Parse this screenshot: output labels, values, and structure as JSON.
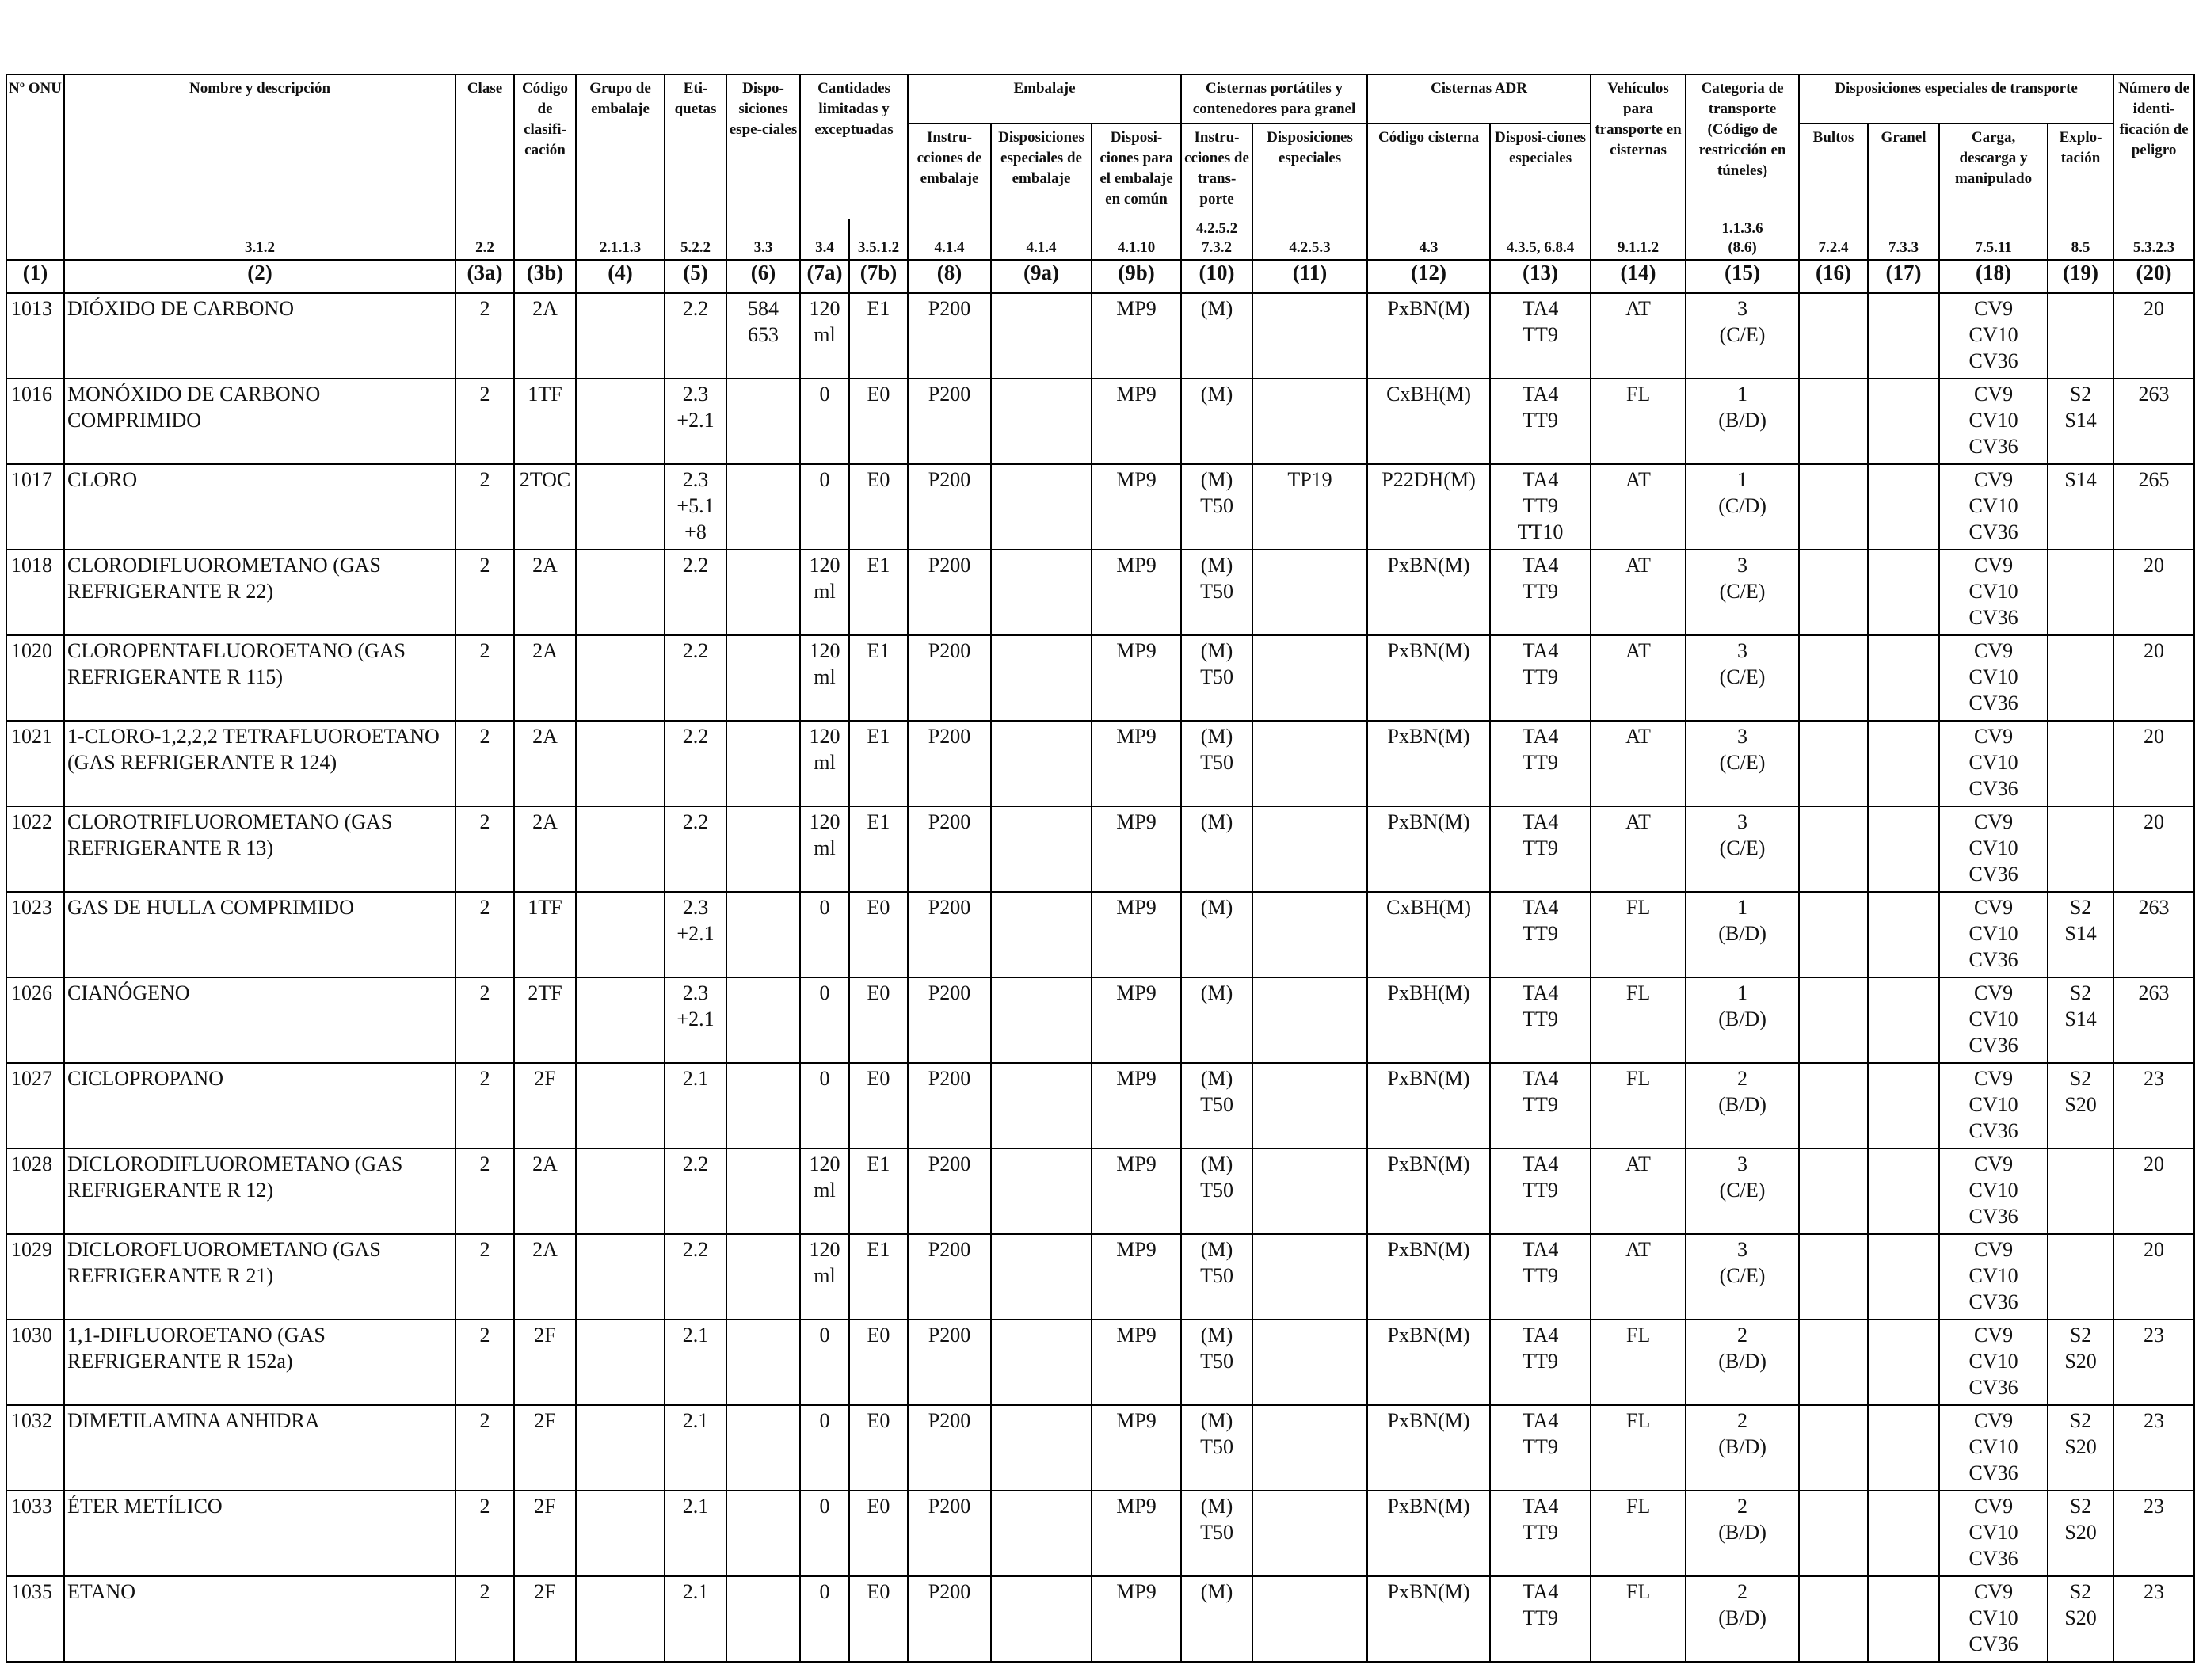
{
  "header": {
    "c1": "Nº ONU",
    "c2": "Nombre y descripción",
    "c3a": "Clase",
    "c3b": "Código de clasifi-cación",
    "c4": "Grupo de embalaje",
    "c5": "Eti-quetas",
    "c6": "Dispo-siciones espe-ciales",
    "c7": "Cantidades limitadas y exceptuadas",
    "embalaje": "Embalaje",
    "c8": "Instru-cciones de embalaje",
    "c9a": "Disposiciones especiales de embalaje",
    "c9b": "Disposi-ciones para el embalaje en común",
    "cisternas_portatiles": "Cisternas portátiles y contenedores para granel",
    "c10": "Instru-cciones de trans-porte",
    "c11": "Disposiciones especiales",
    "cisternas_adr": "Cisternas ADR",
    "c12": "Código cisterna",
    "c13": "Disposi-ciones especiales",
    "c14": "Vehículos para transporte en cisternas",
    "c15": "Categoria de transporte (Código de restricción en túneles)",
    "disp_transporte": "Disposiciones especiales de transporte",
    "c16": "Bultos",
    "c17": "Granel",
    "c18": "Carga, descarga y manipulado",
    "c19": "Explo-tación",
    "c20": "Número de identi-ficación de peligro"
  },
  "refs": {
    "c2": "3.1.2",
    "c3a": "2.2",
    "c4": "2.1.1.3",
    "c5": "5.2.2",
    "c6": "3.3",
    "c7a": "3.4",
    "c7b": "3.5.1.2",
    "c8": "4.1.4",
    "c9a": "4.1.4",
    "c9b": "4.1.10",
    "c10": "4.2.5.2\n7.3.2",
    "c11": "4.2.5.3",
    "c12": "4.3",
    "c13": "4.3.5, 6.8.4",
    "c14": "9.1.1.2",
    "c15": "1.1.3.6\n(8.6)",
    "c16": "7.2.4",
    "c17": "7.3.3",
    "c18": "7.5.11",
    "c19": "8.5",
    "c20": "5.3.2.3"
  },
  "col_numbers": [
    "(1)",
    "(2)",
    "(3a)",
    "(3b)",
    "(4)",
    "(5)",
    "(6)",
    "(7a)",
    "(7b)",
    "(8)",
    "(9a)",
    "(9b)",
    "(10)",
    "(11)",
    "(12)",
    "(13)",
    "(14)",
    "(15)",
    "(16)",
    "(17)",
    "(18)",
    "(19)",
    "(20)"
  ],
  "rows": [
    {
      "un": "1013",
      "name": "DIÓXIDO DE CARBONO",
      "clase": "2",
      "codigo": "2A",
      "grupo": "",
      "etiquetas": "2.2",
      "disp": "584\n653",
      "c7a": "120\nml",
      "c7b": "E1",
      "c8": "P200",
      "c9a": "",
      "c9b": "MP9",
      "c10": "(M)",
      "c11": "",
      "c12": "PxBN(M)",
      "c13": "TA4\nTT9",
      "c14": "AT",
      "c15": "3\n(C/E)",
      "c16": "",
      "c17": "",
      "c18": "CV9\nCV10\nCV36",
      "c19": "",
      "c20": "20"
    },
    {
      "un": "1016",
      "name": "MONÓXIDO DE CARBONO COMPRIMIDO",
      "clase": "2",
      "codigo": "1TF",
      "grupo": "",
      "etiquetas": "2.3\n+2.1",
      "disp": "",
      "c7a": "0",
      "c7b": "E0",
      "c8": "P200",
      "c9a": "",
      "c9b": "MP9",
      "c10": "(M)",
      "c11": "",
      "c12": "CxBH(M)",
      "c13": "TA4\nTT9",
      "c14": "FL",
      "c15": "1\n(B/D)",
      "c16": "",
      "c17": "",
      "c18": "CV9\nCV10\nCV36",
      "c19": "S2\nS14",
      "c20": "263"
    },
    {
      "un": "1017",
      "name": "CLORO",
      "clase": "2",
      "codigo": "2TOC",
      "grupo": "",
      "etiquetas": "2.3\n+5.1\n+8",
      "disp": "",
      "c7a": "0",
      "c7b": "E0",
      "c8": "P200",
      "c9a": "",
      "c9b": "MP9",
      "c10": "(M)\nT50",
      "c11": "TP19",
      "c12": "P22DH(M)",
      "c13": "TA4\nTT9\nTT10",
      "c14": "AT",
      "c15": "1\n(C/D)",
      "c16": "",
      "c17": "",
      "c18": "CV9\nCV10\nCV36",
      "c19": "S14",
      "c20": "265"
    },
    {
      "un": "1018",
      "name": "CLORODIFLUOROMETANO (GAS REFRIGERANTE R 22)",
      "clase": "2",
      "codigo": "2A",
      "grupo": "",
      "etiquetas": "2.2",
      "disp": "",
      "c7a": "120\nml",
      "c7b": "E1",
      "c8": "P200",
      "c9a": "",
      "c9b": "MP9",
      "c10": "(M)\nT50",
      "c11": "",
      "c12": "PxBN(M)",
      "c13": "TA4\nTT9",
      "c14": "AT",
      "c15": "3\n(C/E)",
      "c16": "",
      "c17": "",
      "c18": "CV9\nCV10\nCV36",
      "c19": "",
      "c20": "20"
    },
    {
      "un": "1020",
      "name": "CLOROPENTAFLUOROETANO (GAS REFRIGERANTE R 115)",
      "clase": "2",
      "codigo": "2A",
      "grupo": "",
      "etiquetas": "2.2",
      "disp": "",
      "c7a": "120\nml",
      "c7b": "E1",
      "c8": "P200",
      "c9a": "",
      "c9b": "MP9",
      "c10": "(M)\nT50",
      "c11": "",
      "c12": "PxBN(M)",
      "c13": "TA4\nTT9",
      "c14": "AT",
      "c15": "3\n(C/E)",
      "c16": "",
      "c17": "",
      "c18": "CV9\nCV10\nCV36",
      "c19": "",
      "c20": "20"
    },
    {
      "un": "1021",
      "name": "1-CLORO-1,2,2,2 TETRAFLUOROETANO (GAS REFRIGERANTE R 124)",
      "clase": "2",
      "codigo": "2A",
      "grupo": "",
      "etiquetas": "2.2",
      "disp": "",
      "c7a": "120\nml",
      "c7b": "E1",
      "c8": "P200",
      "c9a": "",
      "c9b": "MP9",
      "c10": "(M)\nT50",
      "c11": "",
      "c12": "PxBN(M)",
      "c13": "TA4\nTT9",
      "c14": "AT",
      "c15": "3\n(C/E)",
      "c16": "",
      "c17": "",
      "c18": "CV9\nCV10\nCV36",
      "c19": "",
      "c20": "20"
    },
    {
      "un": "1022",
      "name": "CLOROTRIFLUOROMETANO (GAS REFRIGERANTE R 13)",
      "clase": "2",
      "codigo": "2A",
      "grupo": "",
      "etiquetas": "2.2",
      "disp": "",
      "c7a": "120\nml",
      "c7b": "E1",
      "c8": "P200",
      "c9a": "",
      "c9b": "MP9",
      "c10": "(M)",
      "c11": "",
      "c12": "PxBN(M)",
      "c13": "TA4\nTT9",
      "c14": "AT",
      "c15": "3\n(C/E)",
      "c16": "",
      "c17": "",
      "c18": "CV9\nCV10\nCV36",
      "c19": "",
      "c20": "20"
    },
    {
      "un": "1023",
      "name": "GAS DE HULLA COMPRIMIDO",
      "clase": "2",
      "codigo": "1TF",
      "grupo": "",
      "etiquetas": "2.3\n+2.1",
      "disp": "",
      "c7a": "0",
      "c7b": "E0",
      "c8": "P200",
      "c9a": "",
      "c9b": "MP9",
      "c10": "(M)",
      "c11": "",
      "c12": "CxBH(M)",
      "c13": "TA4\nTT9",
      "c14": "FL",
      "c15": "1\n(B/D)",
      "c16": "",
      "c17": "",
      "c18": "CV9\nCV10\nCV36",
      "c19": "S2\nS14",
      "c20": "263"
    },
    {
      "un": "1026",
      "name": "CIANÓGENO",
      "clase": "2",
      "codigo": "2TF",
      "grupo": "",
      "etiquetas": "2.3\n+2.1",
      "disp": "",
      "c7a": "0",
      "c7b": "E0",
      "c8": "P200",
      "c9a": "",
      "c9b": "MP9",
      "c10": "(M)",
      "c11": "",
      "c12": "PxBH(M)",
      "c13": "TA4\nTT9",
      "c14": "FL",
      "c15": "1\n(B/D)",
      "c16": "",
      "c17": "",
      "c18": "CV9\nCV10\nCV36",
      "c19": "S2\nS14",
      "c20": "263"
    },
    {
      "un": "1027",
      "name": "CICLOPROPANO",
      "clase": "2",
      "codigo": "2F",
      "grupo": "",
      "etiquetas": "2.1",
      "disp": "",
      "c7a": "0",
      "c7b": "E0",
      "c8": "P200",
      "c9a": "",
      "c9b": "MP9",
      "c10": "(M)\nT50",
      "c11": "",
      "c12": "PxBN(M)",
      "c13": "TA4\nTT9",
      "c14": "FL",
      "c15": "2\n(B/D)",
      "c16": "",
      "c17": "",
      "c18": "CV9\nCV10\nCV36",
      "c19": "S2\nS20",
      "c20": "23"
    },
    {
      "un": "1028",
      "name": "DICLORODIFLUOROMETANO (GAS REFRIGERANTE R 12)",
      "clase": "2",
      "codigo": "2A",
      "grupo": "",
      "etiquetas": "2.2",
      "disp": "",
      "c7a": "120\nml",
      "c7b": "E1",
      "c8": "P200",
      "c9a": "",
      "c9b": "MP9",
      "c10": "(M)\nT50",
      "c11": "",
      "c12": "PxBN(M)",
      "c13": "TA4\nTT9",
      "c14": "AT",
      "c15": "3\n(C/E)",
      "c16": "",
      "c17": "",
      "c18": "CV9\nCV10\nCV36",
      "c19": "",
      "c20": "20"
    },
    {
      "un": "1029",
      "name": "DICLOROFLUOROMETANO (GAS REFRIGERANTE R 21)",
      "clase": "2",
      "codigo": "2A",
      "grupo": "",
      "etiquetas": "2.2",
      "disp": "",
      "c7a": "120\nml",
      "c7b": "E1",
      "c8": "P200",
      "c9a": "",
      "c9b": "MP9",
      "c10": "(M)\nT50",
      "c11": "",
      "c12": "PxBN(M)",
      "c13": "TA4\nTT9",
      "c14": "AT",
      "c15": "3\n(C/E)",
      "c16": "",
      "c17": "",
      "c18": "CV9\nCV10\nCV36",
      "c19": "",
      "c20": "20"
    },
    {
      "un": "1030",
      "name": "1,1-DIFLUOROETANO (GAS REFRIGERANTE R 152a)",
      "clase": "2",
      "codigo": "2F",
      "grupo": "",
      "etiquetas": "2.1",
      "disp": "",
      "c7a": "0",
      "c7b": "E0",
      "c8": "P200",
      "c9a": "",
      "c9b": "MP9",
      "c10": "(M)\nT50",
      "c11": "",
      "c12": "PxBN(M)",
      "c13": "TA4\nTT9",
      "c14": "FL",
      "c15": "2\n(B/D)",
      "c16": "",
      "c17": "",
      "c18": "CV9\nCV10\nCV36",
      "c19": "S2\nS20",
      "c20": "23"
    },
    {
      "un": "1032",
      "name": "DIMETILAMINA ANHIDRA",
      "clase": "2",
      "codigo": "2F",
      "grupo": "",
      "etiquetas": "2.1",
      "disp": "",
      "c7a": "0",
      "c7b": "E0",
      "c8": "P200",
      "c9a": "",
      "c9b": "MP9",
      "c10": "(M)\nT50",
      "c11": "",
      "c12": "PxBN(M)",
      "c13": "TA4\nTT9",
      "c14": "FL",
      "c15": "2\n(B/D)",
      "c16": "",
      "c17": "",
      "c18": "CV9\nCV10\nCV36",
      "c19": "S2\nS20",
      "c20": "23"
    },
    {
      "un": "1033",
      "name": "ÉTER METÍLICO",
      "clase": "2",
      "codigo": "2F",
      "grupo": "",
      "etiquetas": "2.1",
      "disp": "",
      "c7a": "0",
      "c7b": "E0",
      "c8": "P200",
      "c9a": "",
      "c9b": "MP9",
      "c10": "(M)\nT50",
      "c11": "",
      "c12": "PxBN(M)",
      "c13": "TA4\nTT9",
      "c14": "FL",
      "c15": "2\n(B/D)",
      "c16": "",
      "c17": "",
      "c18": "CV9\nCV10\nCV36",
      "c19": "S2\nS20",
      "c20": "23"
    },
    {
      "un": "1035",
      "name": "ETANO",
      "clase": "2",
      "codigo": "2F",
      "grupo": "",
      "etiquetas": "2.1",
      "disp": "",
      "c7a": "0",
      "c7b": "E0",
      "c8": "P200",
      "c9a": "",
      "c9b": "MP9",
      "c10": "(M)",
      "c11": "",
      "c12": "PxBN(M)",
      "c13": "TA4\nTT9",
      "c14": "FL",
      "c15": "2\n(B/D)",
      "c16": "",
      "c17": "",
      "c18": "CV9\nCV10\nCV36",
      "c19": "S2\nS20",
      "c20": "23"
    }
  ]
}
